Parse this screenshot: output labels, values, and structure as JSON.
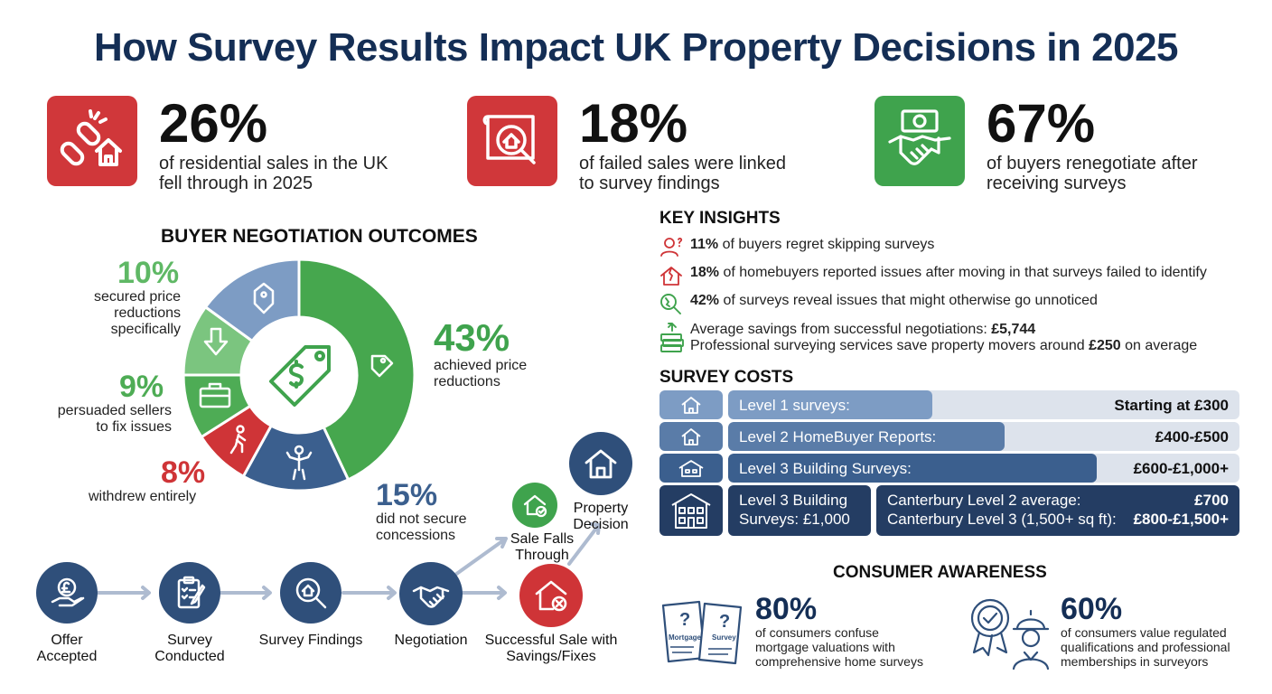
{
  "title": "How Survey Results Impact UK Property Decisions in 2025",
  "stats": [
    {
      "value": "26%",
      "desc_line1": "of residential sales in the UK",
      "desc_line2": "fell through in 2025",
      "color": "#d0373a",
      "icon": "broken-chain-house-icon"
    },
    {
      "value": "18%",
      "desc_line1": "of failed sales were linked",
      "desc_line2": "to survey findings",
      "color": "#d0373a",
      "icon": "blueprint-magnifier-icon"
    },
    {
      "value": "67%",
      "desc_line1": "of buyers renegotiate after",
      "desc_line2": "receiving surveys",
      "color": "#3fa34d",
      "icon": "handshake-money-icon"
    }
  ],
  "negotiation": {
    "title": "BUYER NEGOTIATION OUTCOMES",
    "segments": [
      {
        "pct": "43%",
        "label_line1": "achieved price",
        "label_line2": "reductions",
        "value": 43,
        "color": "#46a74e",
        "icon": "price-tag-icon"
      },
      {
        "pct": "15%",
        "label_line1": "did not secure",
        "label_line2": "concessions",
        "value": 15,
        "color": "#3b5f8e",
        "icon": "shrugging-person-icon"
      },
      {
        "pct": "8%",
        "label_line1": "withdrew entirely",
        "label_line2": "",
        "value": 8,
        "color": "#cf3437",
        "icon": "walking-person-icon"
      },
      {
        "pct": "9%",
        "label_line1": "persuaded sellers",
        "label_line2": "to fix issues",
        "value": 9,
        "color": "#4eac55",
        "icon": "toolbox-icon"
      },
      {
        "pct": "10%",
        "label_line1": "secured price",
        "label_line2": "reductions",
        "label_line3": "specifically",
        "value": 10,
        "color": "#7bc57f",
        "icon": "down-arrow-icon"
      },
      {
        "value": 15,
        "color": "#7d9cc4",
        "icon": "house-tag-icon"
      }
    ],
    "center_icon": "dollar-tag-icon"
  },
  "flow": {
    "steps": [
      "Offer Accepted",
      "Survey Conducted",
      "Survey Findings",
      "Negotiation"
    ],
    "sale_falls": "Sale Falls Through",
    "successful_sale": "Successful Sale with Savings/Fixes",
    "property_decision": "Property Decision",
    "icons": [
      "pound-hand-icon",
      "clipboard-icon",
      "magnifier-house-icon",
      "handshake-icon",
      "house-check-icon",
      "house-x-icon",
      "house-icon"
    ]
  },
  "insights": {
    "title": "KEY INSIGHTS",
    "items": [
      {
        "bold": "11%",
        "text": " of buyers regret skipping surveys",
        "icon": "regret-person-icon"
      },
      {
        "bold": "18%",
        "text": " of homebuyers reported issues after moving in that surveys failed to identify",
        "icon": "cracked-house-icon"
      },
      {
        "bold": "42%",
        "text": " of surveys reveal issues that might otherwise go unnoticed",
        "icon": "magnifier-crack-icon"
      }
    ],
    "savings_text": "Average savings from successful negotiations: ",
    "savings_bold": "£5,744",
    "services_text": "Professional surveying services save property movers around ",
    "services_bold": "£250",
    "services_suffix": " on average",
    "savings_icon": "money-stack-icon"
  },
  "costs": {
    "title": "SURVEY COSTS",
    "rows": [
      {
        "label": "Level 1 surveys:",
        "price": "Starting at £300",
        "fill": 0.4,
        "color": "#7d9cc4"
      },
      {
        "label": "Level 2 HomeBuyer Reports:",
        "price": "£400-£500",
        "fill": 0.54,
        "color": "#5a7ca8"
      },
      {
        "label": "Level 3 Building Surveys:",
        "price": "£600-£1,000+",
        "fill": 0.72,
        "color": "#3b5f8e"
      }
    ],
    "building_line1": "Level 3  Building",
    "building_line2": "Surveys: £1,000",
    "canterbury_l2_label": "Canterbury Level 2 average:",
    "canterbury_l2_price": "£700",
    "canterbury_l3_label": "Canterbury Level 3 (1,500+ sq ft):",
    "canterbury_l3_price": "£800-£1,500+"
  },
  "awareness": {
    "title": "CONSUMER AWARENESS",
    "left_value": "80%",
    "left_line1": "of consumers confuse",
    "left_line2": "mortgage valuations with",
    "left_line3": "comprehensive home surveys",
    "doc1_label": "Mortgage",
    "doc2_label": "Survey",
    "right_value": "60%",
    "right_line1": "of consumers value regulated",
    "right_line2": "qualifications and professional",
    "right_line3": "memberships in surveyors"
  }
}
